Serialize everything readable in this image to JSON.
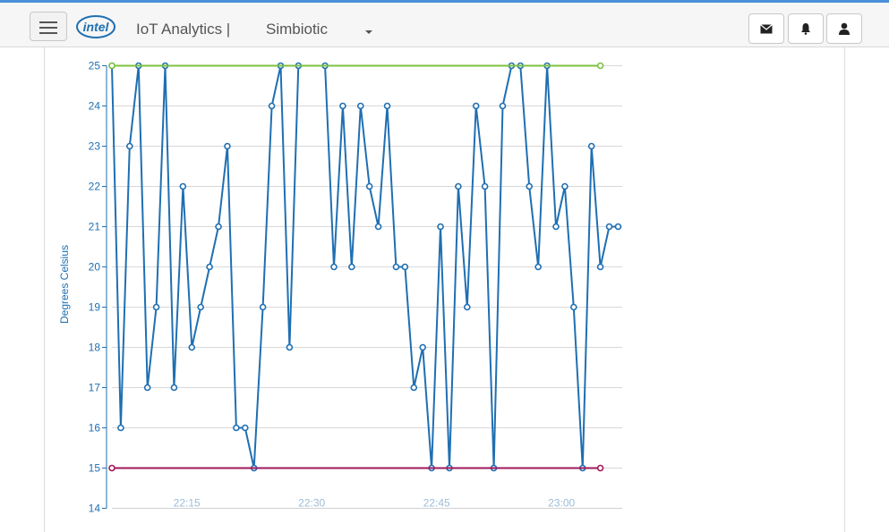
{
  "header": {
    "app_title": "IoT Analytics |",
    "project_name": "Simbiotic",
    "logo_text": "intel",
    "icons": {
      "menu": "hamburger-menu-icon",
      "mail": "envelope-icon",
      "alerts": "bell-icon",
      "user": "user-icon"
    }
  },
  "chart_data": {
    "type": "line",
    "ylabel": "Degrees Celsius",
    "ylim": [
      14,
      25
    ],
    "yticks": [
      "14",
      "15",
      "16",
      "17",
      "18",
      "19",
      "20",
      "21",
      "22",
      "23",
      "24",
      "25"
    ],
    "xlim": [
      "22:06",
      "23:04"
    ],
    "xticks": [
      "22:15",
      "22:30",
      "22:45",
      "23:00"
    ],
    "grid": true,
    "series": [
      {
        "color": "#1f6fb2",
        "x": [
          "22:06:00",
          "22:07:04",
          "22:08:08",
          "22:09:12",
          "22:10:16",
          "22:11:20",
          "22:12:24",
          "22:13:28",
          "22:14:32",
          "22:15:36",
          "22:16:40",
          "22:17:44",
          "22:18:48",
          "22:19:52",
          "22:20:56",
          "22:22:00",
          "22:23:04",
          "22:24:08",
          "22:25:12",
          "22:26:16",
          "22:27:20",
          "22:28:24",
          "22:31:36",
          "22:32:40",
          "22:33:44",
          "22:34:48",
          "22:35:52",
          "22:36:56",
          "22:38:00",
          "22:39:04",
          "22:40:08",
          "22:41:12",
          "22:42:16",
          "22:43:20",
          "22:44:24",
          "22:45:28",
          "22:46:32",
          "22:47:36",
          "22:48:40",
          "22:49:44",
          "22:50:48",
          "22:51:52",
          "22:52:56",
          "22:54:00",
          "22:55:04",
          "22:56:08",
          "22:57:12",
          "22:58:16",
          "22:59:20",
          "23:00:24",
          "23:01:28",
          "23:02:32",
          "23:03:36",
          "23:04:40",
          "23:05:44",
          "23:06:48"
        ],
        "values": [
          25,
          16,
          23,
          25,
          17,
          19,
          25,
          17,
          22,
          18,
          19,
          20,
          21,
          23,
          16,
          16,
          15,
          19,
          24,
          25,
          18,
          25,
          25,
          20,
          24,
          20,
          24,
          22,
          21,
          24,
          20,
          20,
          17,
          18,
          15,
          21,
          15,
          22,
          19,
          24,
          22,
          15,
          24,
          25,
          25,
          22,
          20,
          25,
          21,
          22,
          19,
          15,
          23,
          20,
          21,
          21
        ]
      },
      {
        "color": "#7dc242",
        "x": [
          "22:06:00",
          "23:04:40"
        ],
        "values": [
          25,
          25
        ]
      },
      {
        "color": "#a0185a",
        "x": [
          "22:06:00",
          "23:04:40"
        ],
        "values": [
          15,
          15
        ]
      }
    ]
  }
}
